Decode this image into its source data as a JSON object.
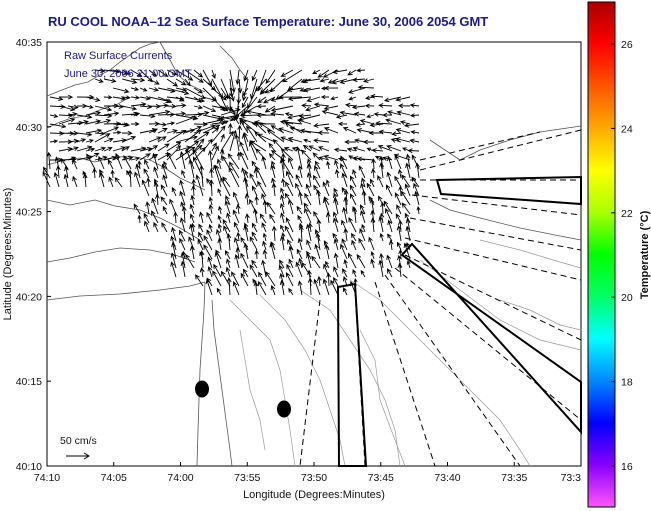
{
  "title": "RU COOL   NOAA–12  Sea Surface Temperature:  June 30, 2006 2054 GMT",
  "legend": {
    "line1": "Raw Surface Currents",
    "line2": "June 30, 2006 21:00 GMT"
  },
  "scale_label": "50 cm/s",
  "map": {
    "xlabel": "Longitude (Degrees:Minutes)",
    "ylabel": "Latitude (Degrees:Minutes)",
    "x_ticks": [
      "74:10",
      "74:05",
      "74:00",
      "73:55",
      "73:50",
      "73:45",
      "73:40",
      "73:35",
      "73:3"
    ],
    "y_ticks": [
      "40:35",
      "40:30",
      "40:25",
      "40:20",
      "40:15",
      "40:10"
    ],
    "lon_range": [
      "74:10",
      "73:30"
    ],
    "lat_range": [
      "40:10",
      "40:35"
    ]
  },
  "colorbar": {
    "label": "Temperature (°C)",
    "ticks": [
      "26",
      "24",
      "22",
      "20",
      "18",
      "16"
    ],
    "colors": [
      "#ff55ff",
      "#8800ff",
      "#0000ff",
      "#0088ff",
      "#00ffff",
      "#00ff66",
      "#00ff00",
      "#aaff00",
      "#ffff00",
      "#ffaa00",
      "#ff5500",
      "#ff0000",
      "#aa0000"
    ]
  },
  "markers": {
    "count": 2,
    "description_color": "#000000"
  }
}
